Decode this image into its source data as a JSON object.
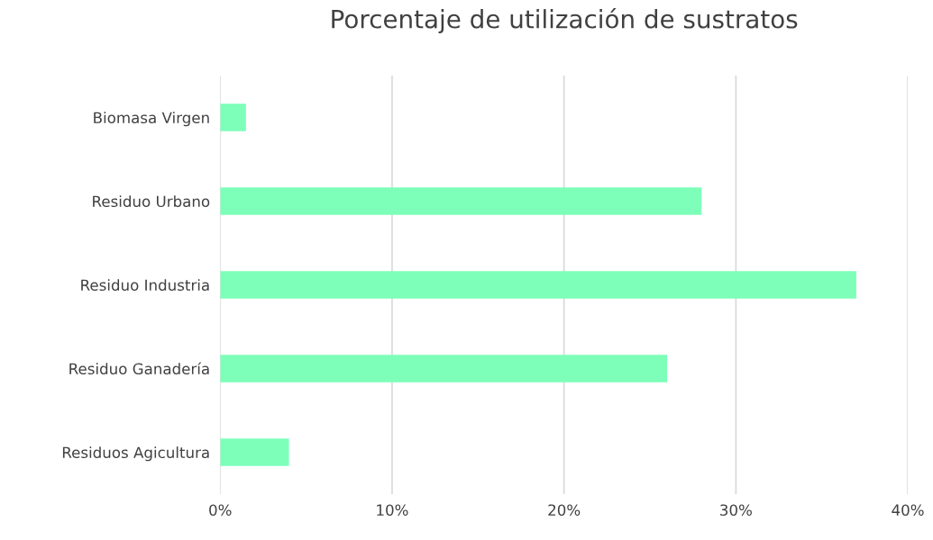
{
  "chart_data": {
    "type": "bar",
    "orientation": "horizontal",
    "title": "Porcentaje de utilización de sustratos",
    "categories": [
      "Biomasa Virgen",
      "Residuo Urbano",
      "Residuo Industria",
      "Residuo Ganadería",
      "Residuos Agicultura"
    ],
    "values": [
      1.5,
      28,
      37,
      26,
      4
    ],
    "color": "#7dffb9",
    "xlim": [
      0,
      40
    ],
    "xticks": [
      {
        "value": 0,
        "label": "0%"
      },
      {
        "value": 10,
        "label": "10%"
      },
      {
        "value": 20,
        "label": "20%"
      },
      {
        "value": 30,
        "label": "30%"
      },
      {
        "value": 40,
        "label": "40%"
      }
    ],
    "grid": "x"
  }
}
